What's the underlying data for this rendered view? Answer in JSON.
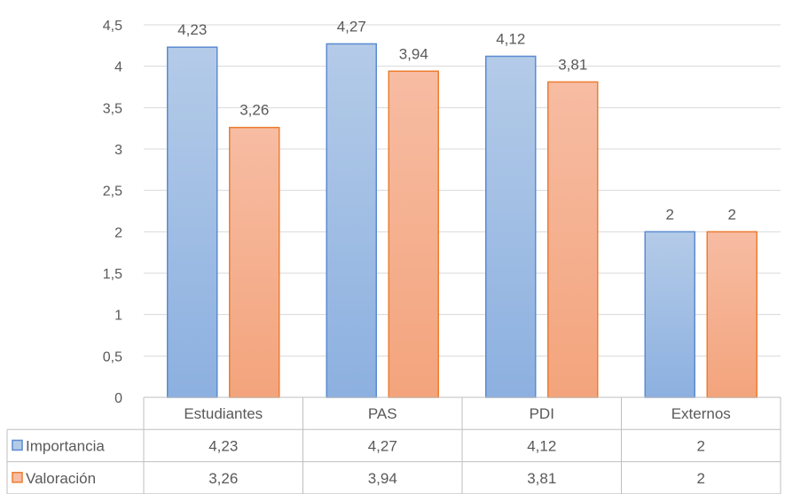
{
  "chart_data": {
    "type": "bar",
    "title": "",
    "xlabel": "",
    "ylabel": "",
    "ylim": [
      0,
      4.5
    ],
    "ytick_step": 0.5,
    "ytick_labels": [
      "0",
      "0,5",
      "1",
      "1,5",
      "2",
      "2,5",
      "3",
      "3,5",
      "4",
      "4,5"
    ],
    "categories": [
      "Estudiantes",
      "PAS",
      "PDI",
      "Externos"
    ],
    "series": [
      {
        "name": "Importancia",
        "values": [
          4.23,
          4.27,
          4.12,
          2
        ],
        "labels": [
          "4,23",
          "4,27",
          "4,12",
          "2"
        ],
        "fill_top": "#b4cbe8",
        "fill_bottom": "#8cb0e0",
        "stroke": "#5b8bd0"
      },
      {
        "name": "Valoración",
        "values": [
          3.26,
          3.94,
          3.81,
          2
        ],
        "labels": [
          "3,26",
          "3,94",
          "3,81",
          "2"
        ],
        "fill_top": "#f7bca3",
        "fill_bottom": "#f3a47c",
        "stroke": "#ed7d31"
      }
    ],
    "grid": true,
    "legend": "data-table"
  }
}
